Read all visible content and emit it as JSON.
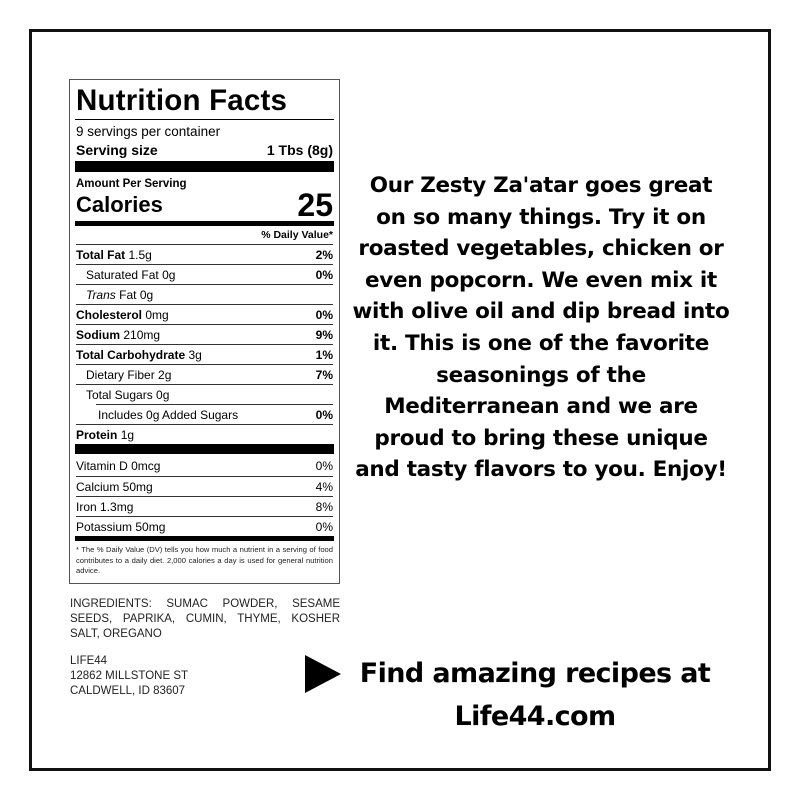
{
  "nutrition": {
    "title": "Nutrition Facts",
    "servings": "9 servings per container",
    "serving_size_label": "Serving size",
    "serving_size_value": "1 Tbs (8g)",
    "amount_per_serving": "Amount Per Serving",
    "calories_label": "Calories",
    "calories_value": "25",
    "daily_value_header": "% Daily Value*",
    "rows": [
      {
        "name": "Total Fat",
        "amount": "1.5g",
        "dv": "2%"
      },
      {
        "name": "Saturated Fat",
        "amount": "0g",
        "dv": "0%"
      },
      {
        "name": "Trans",
        "name2": "Fat",
        "amount": "0g",
        "dv": ""
      },
      {
        "name": "Cholesterol",
        "amount": "0mg",
        "dv": "0%"
      },
      {
        "name": "Sodium",
        "amount": "210mg",
        "dv": "9%"
      },
      {
        "name": "Total Carbohydrate",
        "amount": "3g",
        "dv": "1%"
      },
      {
        "name": "Dietary Fiber",
        "amount": "2g",
        "dv": "7%"
      },
      {
        "name": "Total Sugars",
        "amount": "0g",
        "dv": ""
      },
      {
        "name": "Includes 0g Added Sugars",
        "amount": "",
        "dv": "0%"
      },
      {
        "name": "Protein",
        "amount": "1g",
        "dv": ""
      }
    ],
    "vitamins": [
      {
        "name": "Vitamin D 0mcg",
        "dv": "0%"
      },
      {
        "name": "Calcium 50mg",
        "dv": "4%"
      },
      {
        "name": "Iron 1.3mg",
        "dv": "8%"
      },
      {
        "name": "Potassium 50mg",
        "dv": "0%"
      }
    ],
    "footnote": "* The % Daily Value (DV) tells you how much a nutrient in a serving of food contributes to a daily diet. 2,000 calories a day is used for general nutrition advice."
  },
  "ingredients": "INGREDIENTS: SUMAC POWDER, SESAME SEEDS, PAPRIKA, CUMIN, THYME, KOSHER SALT, OREGANO",
  "address": [
    "LIFE44",
    "12862 MILLSTONE ST",
    "CALDWELL, ID 83607"
  ],
  "blurb": "Our Zesty Za'atar goes great on so many things. Try it on roasted vegetables, chicken or even popcorn. We even mix it with olive oil and dip bread into it. This is one of the favorite seasonings of the Mediterranean and we are proud to bring these unique and tasty flavors to you. Enjoy!",
  "cta": {
    "line1": "Find amazing recipes at",
    "line2": "Life44.com",
    "icon": "play-triangle-icon"
  }
}
